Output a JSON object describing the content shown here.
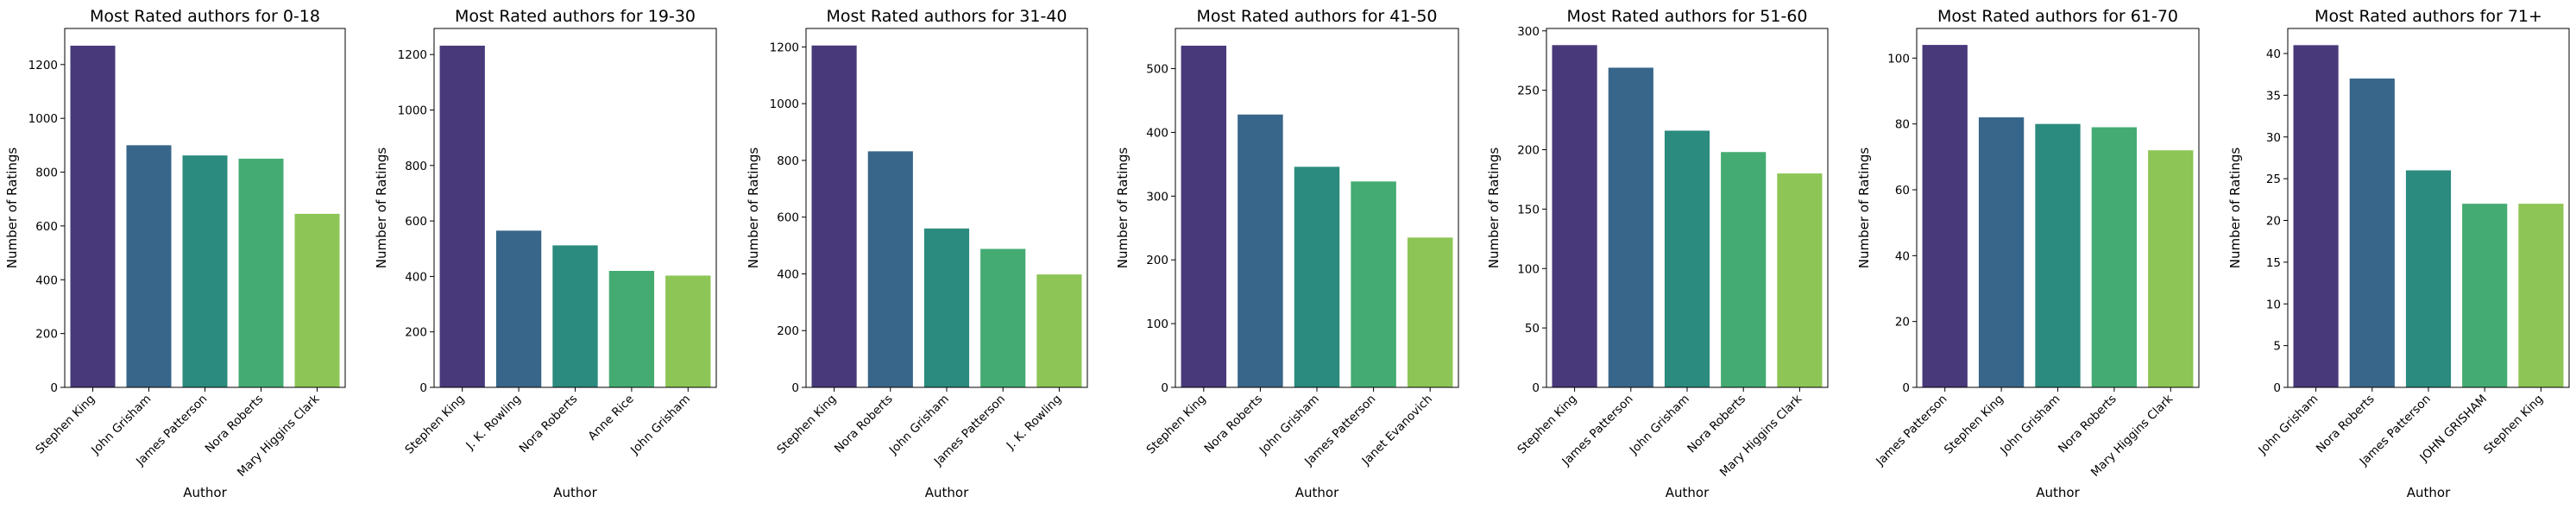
{
  "charts": [
    {
      "type": "bar",
      "title": "Most Rated authors for 0-18",
      "xlabel": "Author",
      "ylabel": "Number of Ratings",
      "categories": [
        "Stephen King",
        "John Grisham",
        "James Patterson",
        "Nora Roberts",
        "Mary Higgins Clark"
      ],
      "values": [
        1270,
        900,
        862,
        850,
        645
      ],
      "ylim": [
        0,
        1334
      ],
      "yticks": [
        0,
        200,
        400,
        600,
        800,
        1000,
        1200
      ]
    },
    {
      "type": "bar",
      "title": "Most Rated authors for 19-30",
      "xlabel": "Author",
      "ylabel": "Number of Ratings",
      "categories": [
        "Stephen King",
        "J. K. Rowling",
        "Nora Roberts",
        "Anne Rice",
        "John Grisham"
      ],
      "values": [
        1232,
        565,
        512,
        420,
        403
      ],
      "ylim": [
        0,
        1294
      ],
      "yticks": [
        0,
        200,
        400,
        600,
        800,
        1000,
        1200
      ]
    },
    {
      "type": "bar",
      "title": "Most Rated authors for 31-40",
      "xlabel": "Author",
      "ylabel": "Number of Ratings",
      "categories": [
        "Stephen King",
        "Nora Roberts",
        "John Grisham",
        "James Patterson",
        "J. K. Rowling"
      ],
      "values": [
        1205,
        832,
        560,
        488,
        398
      ],
      "ylim": [
        0,
        1265
      ],
      "yticks": [
        0,
        200,
        400,
        600,
        800,
        1000,
        1200
      ]
    },
    {
      "type": "bar",
      "title": "Most Rated authors for 41-50",
      "xlabel": "Author",
      "ylabel": "Number of Ratings",
      "categories": [
        "Stephen King",
        "Nora Roberts",
        "John Grisham",
        "James Patterson",
        "Janet Evanovich"
      ],
      "values": [
        536,
        428,
        346,
        323,
        235
      ],
      "ylim": [
        0,
        563
      ],
      "yticks": [
        0,
        100,
        200,
        300,
        400,
        500
      ]
    },
    {
      "type": "bar",
      "title": "Most Rated authors for 51-60",
      "xlabel": "Author",
      "ylabel": "Number of Ratings",
      "categories": [
        "Stephen King",
        "James Patterson",
        "John Grisham",
        "Nora Roberts",
        "Mary Higgins Clark"
      ],
      "values": [
        288,
        269,
        216,
        198,
        180
      ],
      "ylim": [
        0,
        302
      ],
      "yticks": [
        0,
        50,
        100,
        150,
        200,
        250,
        300
      ]
    },
    {
      "type": "bar",
      "title": "Most Rated authors for 61-70",
      "xlabel": "Author",
      "ylabel": "Number of Ratings",
      "categories": [
        "James Patterson",
        "Stephen King",
        "John Grisham",
        "Nora Roberts",
        "Mary Higgins Clark"
      ],
      "values": [
        104,
        82,
        80,
        79,
        72
      ],
      "ylim": [
        0,
        109
      ],
      "yticks": [
        0,
        20,
        40,
        60,
        80,
        100
      ]
    },
    {
      "type": "bar",
      "title": "Most Rated authors for 71+",
      "xlabel": "Author",
      "ylabel": "Number of Ratings",
      "categories": [
        "John Grisham",
        "Nora Roberts",
        "James Patterson",
        "JOHN GRISHAM",
        "Stephen King"
      ],
      "values": [
        41,
        37,
        26,
        22,
        22
      ],
      "ylim": [
        0,
        43
      ],
      "yticks": [
        0,
        5,
        10,
        15,
        20,
        25,
        30,
        35,
        40
      ]
    }
  ],
  "colors": [
    "#48397a",
    "#38668a",
    "#2b8b7e",
    "#44ab72",
    "#8dc556"
  ]
}
